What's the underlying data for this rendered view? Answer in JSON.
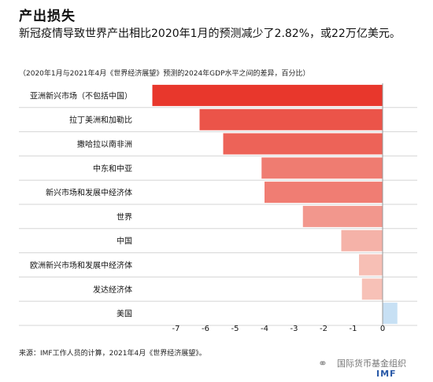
{
  "title": "产出损失",
  "subtitle": "新冠疫情导致世界产出相比2020年1月的预测减少了2.82%，或22万亿美元。",
  "note": "（2020年1月与2021年4月《世界经济展望》预测的2024年GDP水平之间的差异，百分比）",
  "source": "来源：IMF工作人员的计算，2021年4月《世界经济展望》。",
  "watermark": {
    "icon": "wechat-icon",
    "text": "国际货币基金组织",
    "logo": "IMF"
  },
  "colors": {
    "strong_neg": "#e8372c",
    "weak_neg": "#f9d3c9",
    "positive": "#c7e0f4",
    "separator": "#d5d5d5"
  },
  "chart_data": {
    "type": "bar",
    "orientation": "horizontal",
    "categories": [
      "亚洲新兴市场（不包括中国）",
      "拉丁美洲和加勒比",
      "撒哈拉以南非洲",
      "中东和中亚",
      "新兴市场和发展中经济体",
      "世界",
      "中国",
      "欧洲新兴市场和发展中经济体",
      "发达经济体",
      "美国"
    ],
    "values": [
      -7.8,
      -6.2,
      -5.4,
      -4.1,
      -4.0,
      -2.7,
      -1.4,
      -0.8,
      -0.7,
      0.5
    ],
    "xlim": [
      -8,
      0.7
    ],
    "xticks": [
      -7,
      -6,
      -5,
      -4,
      -3,
      -2,
      -1,
      0
    ],
    "xtick_labels": [
      "-7",
      "-6",
      "-5",
      "-4",
      "-3",
      "-2",
      "-1",
      "0"
    ],
    "grid": false
  }
}
